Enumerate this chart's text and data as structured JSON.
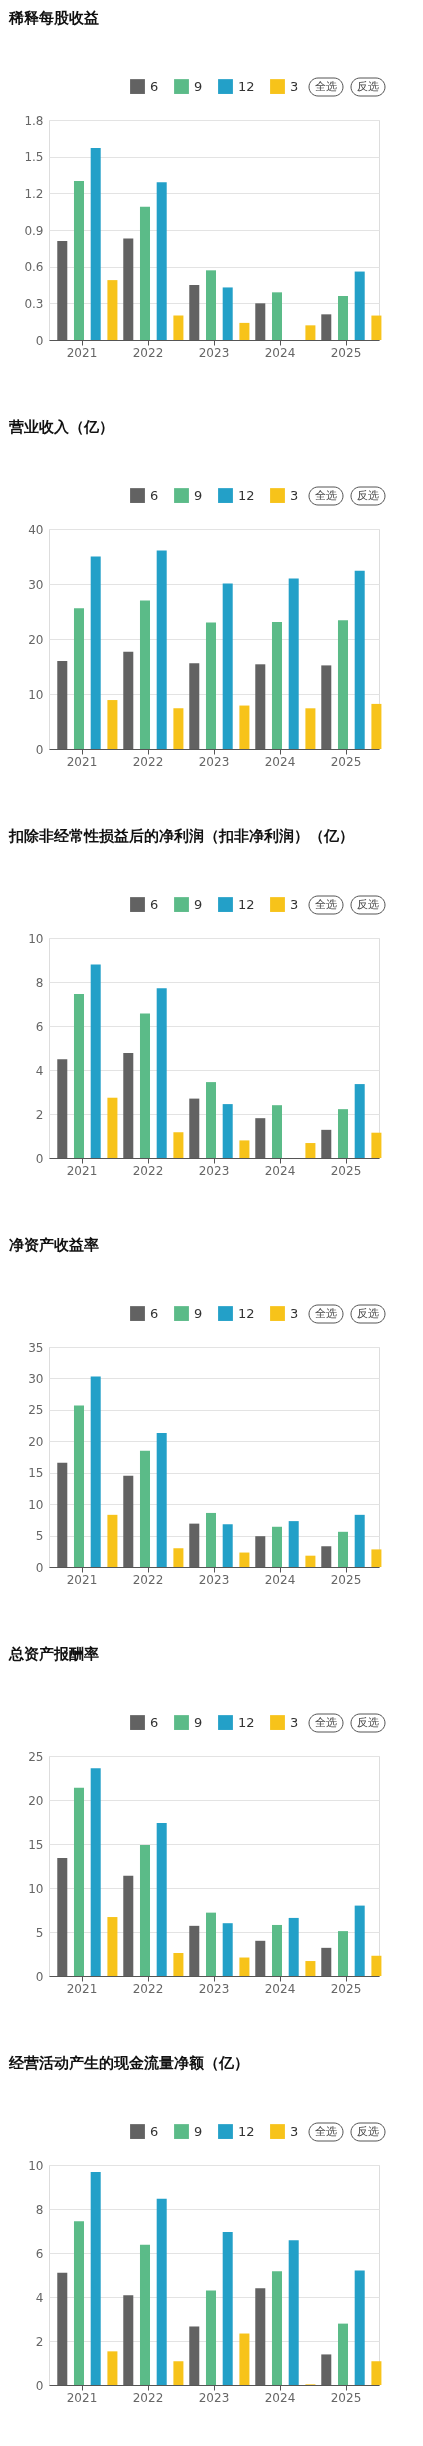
{
  "chart_data": [
    {
      "type": "bar",
      "title": "稀释每股收益",
      "categories": [
        "2021",
        "2022",
        "2023",
        "2024",
        "2025"
      ],
      "ylim": [
        0,
        1.8
      ],
      "yticks": [
        0,
        0.3,
        0.6,
        0.9,
        1.2,
        1.5,
        1.8
      ],
      "grid": "y",
      "legend": "top right",
      "annotations": [
        "全选",
        "反选"
      ],
      "series": [
        {
          "name": "6",
          "color": "#626262",
          "values": [
            0.81,
            0.83,
            0.45,
            0.3,
            0.21
          ]
        },
        {
          "name": "9",
          "color": "#5bbb88",
          "values": [
            1.3,
            1.09,
            0.57,
            0.39,
            0.36
          ]
        },
        {
          "name": "12",
          "color": "#23a0c8",
          "values": [
            1.57,
            1.29,
            0.43,
            null,
            0.56
          ]
        },
        {
          "name": "3",
          "color": "#f7c31a",
          "values": [
            0.49,
            0.2,
            0.14,
            0.12,
            0.2
          ]
        }
      ]
    },
    {
      "type": "bar",
      "title": "营业收入（亿）",
      "categories": [
        "2021",
        "2022",
        "2023",
        "2024",
        "2025"
      ],
      "ylim": [
        0,
        40
      ],
      "yticks": [
        0,
        10,
        20,
        30,
        40
      ],
      "grid": "y",
      "legend": "top right",
      "annotations": [
        "全选",
        "反选"
      ],
      "series": [
        {
          "name": "6",
          "color": "#626262",
          "values": [
            16.0,
            17.7,
            15.6,
            15.4,
            15.2
          ]
        },
        {
          "name": "9",
          "color": "#5bbb88",
          "values": [
            25.6,
            27.0,
            23.0,
            23.1,
            23.4
          ]
        },
        {
          "name": "12",
          "color": "#23a0c8",
          "values": [
            35.0,
            36.1,
            30.1,
            31.0,
            32.4
          ]
        },
        {
          "name": "3",
          "color": "#f7c31a",
          "values": [
            8.9,
            7.4,
            7.9,
            7.4,
            8.2
          ]
        }
      ]
    },
    {
      "type": "bar",
      "title": "扣除非经常性损益后的净利润（扣非净利润）（亿）",
      "categories": [
        "2021",
        "2022",
        "2023",
        "2024",
        "2025"
      ],
      "ylim": [
        0,
        10
      ],
      "yticks": [
        0,
        2,
        4,
        6,
        8,
        10
      ],
      "grid": "y",
      "legend": "top right",
      "annotations": [
        "全选",
        "反选"
      ],
      "series": [
        {
          "name": "6",
          "color": "#626262",
          "values": [
            4.49,
            4.77,
            2.7,
            1.81,
            1.28
          ]
        },
        {
          "name": "9",
          "color": "#5bbb88",
          "values": [
            7.45,
            6.57,
            3.45,
            2.4,
            2.22
          ]
        },
        {
          "name": "12",
          "color": "#23a0c8",
          "values": [
            8.79,
            7.72,
            2.45,
            null,
            3.36
          ]
        },
        {
          "name": "3",
          "color": "#f7c31a",
          "values": [
            2.74,
            1.17,
            0.8,
            0.68,
            1.15
          ]
        }
      ]
    },
    {
      "type": "bar",
      "title": "净资产收益率",
      "categories": [
        "2021",
        "2022",
        "2023",
        "2024",
        "2025"
      ],
      "ylim": [
        0,
        35
      ],
      "yticks": [
        0,
        5,
        10,
        15,
        20,
        25,
        30,
        35
      ],
      "grid": "y",
      "legend": "top right",
      "annotations": [
        "全选",
        "反选"
      ],
      "series": [
        {
          "name": "6",
          "color": "#626262",
          "values": [
            16.6,
            14.5,
            6.9,
            4.9,
            3.3
          ]
        },
        {
          "name": "9",
          "color": "#5bbb88",
          "values": [
            25.7,
            18.5,
            8.6,
            6.4,
            5.6
          ]
        },
        {
          "name": "12",
          "color": "#23a0c8",
          "values": [
            30.3,
            21.3,
            6.8,
            7.3,
            8.3
          ]
        },
        {
          "name": "3",
          "color": "#f7c31a",
          "values": [
            8.3,
            3.0,
            2.3,
            1.8,
            2.8
          ]
        }
      ]
    },
    {
      "type": "bar",
      "title": "总资产报酬率",
      "categories": [
        "2021",
        "2022",
        "2023",
        "2024",
        "2025"
      ],
      "ylim": [
        0,
        25
      ],
      "yticks": [
        0,
        5,
        10,
        15,
        20,
        25
      ],
      "grid": "y",
      "legend": "top right",
      "annotations": [
        "全选",
        "反选"
      ],
      "series": [
        {
          "name": "6",
          "color": "#626262",
          "values": [
            13.4,
            11.4,
            5.7,
            4.0,
            3.2
          ]
        },
        {
          "name": "9",
          "color": "#5bbb88",
          "values": [
            21.4,
            14.9,
            7.2,
            5.8,
            5.1
          ]
        },
        {
          "name": "12",
          "color": "#23a0c8",
          "values": [
            23.6,
            17.4,
            6.0,
            6.6,
            8.0
          ]
        },
        {
          "name": "3",
          "color": "#f7c31a",
          "values": [
            6.7,
            2.6,
            2.1,
            1.7,
            2.3
          ]
        }
      ]
    },
    {
      "type": "bar",
      "title": "经营活动产生的现金流量净额（亿）",
      "categories": [
        "2021",
        "2022",
        "2023",
        "2024",
        "2025"
      ],
      "ylim": [
        0,
        10
      ],
      "yticks": [
        0,
        2,
        4,
        6,
        8,
        10
      ],
      "grid": "y",
      "legend": "top right",
      "annotations": [
        "全选",
        "反选"
      ],
      "series": [
        {
          "name": "6",
          "color": "#626262",
          "values": [
            5.1,
            4.08,
            2.66,
            4.4,
            1.39
          ]
        },
        {
          "name": "9",
          "color": "#5bbb88",
          "values": [
            7.44,
            6.37,
            4.29,
            5.17,
            2.79
          ]
        },
        {
          "name": "12",
          "color": "#23a0c8",
          "values": [
            9.68,
            8.47,
            6.95,
            6.58,
            5.21
          ]
        },
        {
          "name": "3",
          "color": "#f7c31a",
          "values": [
            1.53,
            1.08,
            2.34,
            0.03,
            1.08
          ]
        }
      ]
    }
  ]
}
